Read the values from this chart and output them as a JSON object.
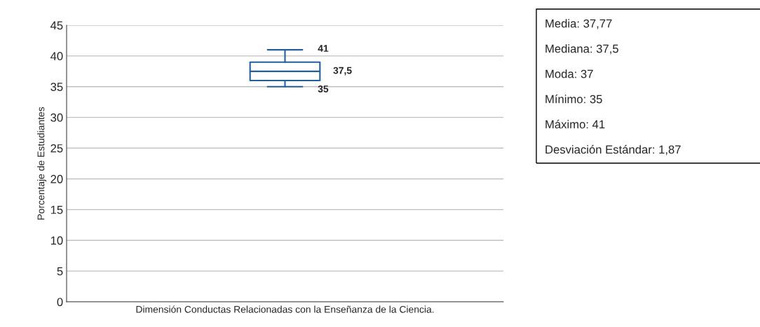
{
  "chart_data": {
    "type": "box",
    "categories": [
      null
    ],
    "boxes": [
      {
        "low": 35,
        "q1": 36,
        "median": 37.5,
        "q3": 39,
        "high": 41
      }
    ],
    "color": "#1f5fa8",
    "xlabel": "Dimensión Conductas Relacionadas con la Enseñanza de la Ciencia.",
    "ylabel": "Porcentaje de Estudiantes",
    "ylim": [
      0,
      45
    ],
    "yticks": [
      0,
      5,
      10,
      15,
      20,
      25,
      30,
      35,
      40,
      45
    ],
    "grid": "y",
    "tick_labels": "y",
    "annotations": [
      "41",
      "37,5",
      "35",
      "Media: 37,77",
      "Mediana: 37,5",
      "Moda: 37",
      "Mínimo: 35",
      "Máximo: 41",
      "Desviación Estándar: 1,87"
    ]
  }
}
